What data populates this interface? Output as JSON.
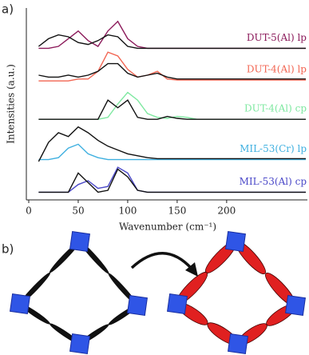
{
  "chart_data": {
    "type": "line",
    "panel_label": "a)",
    "diagram_label": "b)",
    "y_label": "Intensities (a.u.)",
    "x_label": "Wavenumber (cm⁻¹)",
    "xlim": [
      0,
      280
    ],
    "ylim": [
      0,
      100
    ],
    "xticks": [
      0,
      50,
      100,
      150,
      200
    ],
    "x": [
      10,
      20,
      30,
      40,
      50,
      60,
      70,
      80,
      90,
      100,
      110,
      120,
      130,
      140,
      150,
      160,
      170,
      180,
      190,
      200,
      210,
      220,
      230,
      240,
      250,
      260,
      270,
      280
    ],
    "series": [
      {
        "name": "DUT-5(Al) lp",
        "color": "#8b1a5a",
        "values": [
          79,
          79,
          80,
          84,
          88,
          83,
          80,
          88,
          93,
          84,
          80,
          79,
          79,
          79,
          79,
          79,
          79,
          79,
          79,
          79,
          79,
          79,
          79,
          79,
          79,
          79,
          79,
          79
        ]
      },
      {
        "color": "#111111",
        "values": [
          80,
          84,
          86,
          85,
          82,
          81,
          83,
          86,
          85,
          80,
          79,
          79,
          79,
          79,
          79,
          79,
          79,
          79,
          79,
          79,
          79,
          79,
          79,
          79,
          79,
          79,
          79,
          79
        ]
      },
      {
        "name": "DUT-4(Al) lp",
        "color": "#f26552",
        "values": [
          62,
          62,
          62,
          62,
          63,
          63,
          67,
          77,
          75,
          68,
          64,
          65,
          67,
          63,
          62.5,
          62.5,
          62.5,
          62.5,
          62.5,
          62.5,
          62.5,
          62.5,
          62.5,
          62.5,
          62.5,
          62.5,
          62.5,
          62.5
        ]
      },
      {
        "color": "#111111",
        "values": [
          65,
          64,
          64,
          65,
          64,
          65,
          67,
          71,
          71,
          66,
          64,
          65,
          66,
          64,
          63,
          63,
          63,
          63,
          63,
          63,
          63,
          63,
          63,
          63,
          63,
          63,
          63,
          63
        ]
      },
      {
        "name": "DUT-4(Al) cp",
        "color": "#7ee8a0",
        "values": [
          42,
          42,
          42,
          42,
          42,
          42,
          42,
          43,
          50,
          56,
          52,
          45,
          43,
          42.5,
          43.5,
          43,
          42,
          42,
          42,
          42,
          42,
          42,
          42,
          42,
          42,
          42,
          42,
          42
        ]
      },
      {
        "color": "#111111",
        "values": [
          42,
          42,
          42,
          42,
          42,
          42,
          42,
          52,
          48,
          52,
          43,
          42,
          42,
          43.5,
          42.5,
          42,
          42,
          42,
          42,
          42,
          42,
          42,
          42,
          42,
          42,
          42,
          42,
          42
        ]
      },
      {
        "name": "MIL-53(Cr) lp",
        "color": "#3fb0e0",
        "values": [
          21,
          21,
          22,
          27,
          29,
          24,
          22,
          21,
          21,
          21,
          21,
          21,
          21,
          21,
          21,
          21,
          21,
          21,
          21,
          21,
          21,
          21,
          21,
          21,
          21,
          21,
          21,
          21
        ]
      },
      {
        "color": "#111111",
        "values": [
          20,
          30,
          35,
          33,
          38,
          35,
          31,
          28,
          26,
          24,
          23,
          22,
          21.5,
          21.5,
          21.5,
          21.5,
          21.5,
          21.5,
          21.5,
          21.5,
          21.5,
          21.5,
          21.5,
          21.5,
          21.5,
          21.5,
          21.5,
          21.5
        ]
      },
      {
        "name": "MIL-53(Al) cp",
        "color": "#4a48c8",
        "values": [
          4,
          4,
          4,
          4,
          8,
          10,
          6,
          7,
          17,
          14,
          5,
          4,
          4,
          4,
          4,
          4,
          4,
          4,
          4,
          4,
          4,
          4,
          4,
          4,
          4,
          4,
          4,
          4
        ]
      },
      {
        "color": "#111111",
        "values": [
          4,
          4,
          4,
          4,
          14,
          9,
          4,
          5,
          16,
          12,
          5,
          4,
          4,
          4,
          4,
          4,
          4,
          4,
          4,
          4,
          4,
          4,
          4,
          4,
          4,
          4,
          4,
          4
        ]
      }
    ]
  }
}
